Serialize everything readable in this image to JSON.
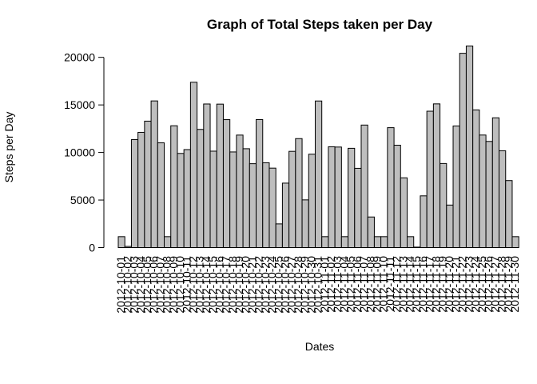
{
  "chart_data": {
    "type": "bar",
    "title": "Graph of Total Steps taken per Day",
    "xlabel": "Dates",
    "ylabel": "Steps per Day",
    "ylim": [
      0,
      21194
    ],
    "yticks": [
      0,
      5000,
      10000,
      15000,
      20000
    ],
    "bar_color": "#bebebe",
    "categories": [
      "2012-10-01",
      "2012-10-02",
      "2012-10-03",
      "2012-10-04",
      "2012-10-05",
      "2012-10-06",
      "2012-10-07",
      "2012-10-08",
      "2012-10-09",
      "2012-10-10",
      "2012-10-11",
      "2012-10-12",
      "2012-10-13",
      "2012-10-14",
      "2012-10-15",
      "2012-10-16",
      "2012-10-17",
      "2012-10-18",
      "2012-10-19",
      "2012-10-20",
      "2012-10-21",
      "2012-10-22",
      "2012-10-23",
      "2012-10-24",
      "2012-10-25",
      "2012-10-26",
      "2012-10-27",
      "2012-10-28",
      "2012-10-29",
      "2012-10-30",
      "2012-10-31",
      "2012-11-01",
      "2012-11-02",
      "2012-11-03",
      "2012-11-04",
      "2012-11-05",
      "2012-11-06",
      "2012-11-07",
      "2012-11-08",
      "2012-11-09",
      "2012-11-10",
      "2012-11-11",
      "2012-11-12",
      "2012-11-13",
      "2012-11-14",
      "2012-11-15",
      "2012-11-16",
      "2012-11-17",
      "2012-11-18",
      "2012-11-19",
      "2012-11-20",
      "2012-11-21",
      "2012-11-22",
      "2012-11-23",
      "2012-11-24",
      "2012-11-25",
      "2012-11-26",
      "2012-11-27",
      "2012-11-28",
      "2012-11-29",
      "2012-11-30"
    ],
    "values": [
      1150,
      126,
      11352,
      12116,
      13294,
      15420,
      11015,
      1150,
      12811,
      9900,
      10304,
      17382,
      12426,
      15098,
      10139,
      15084,
      13452,
      10056,
      11829,
      10395,
      8821,
      13460,
      8918,
      8355,
      2492,
      6778,
      10119,
      11458,
      5018,
      9819,
      15414,
      1150,
      10600,
      10571,
      1150,
      10439,
      8334,
      12883,
      3219,
      1150,
      1150,
      12608,
      10765,
      7336,
      1150,
      41,
      5441,
      14339,
      15110,
      8841,
      4472,
      12787,
      20427,
      21194,
      14478,
      11834,
      11162,
      13646,
      10183,
      7047,
      1150
    ]
  }
}
